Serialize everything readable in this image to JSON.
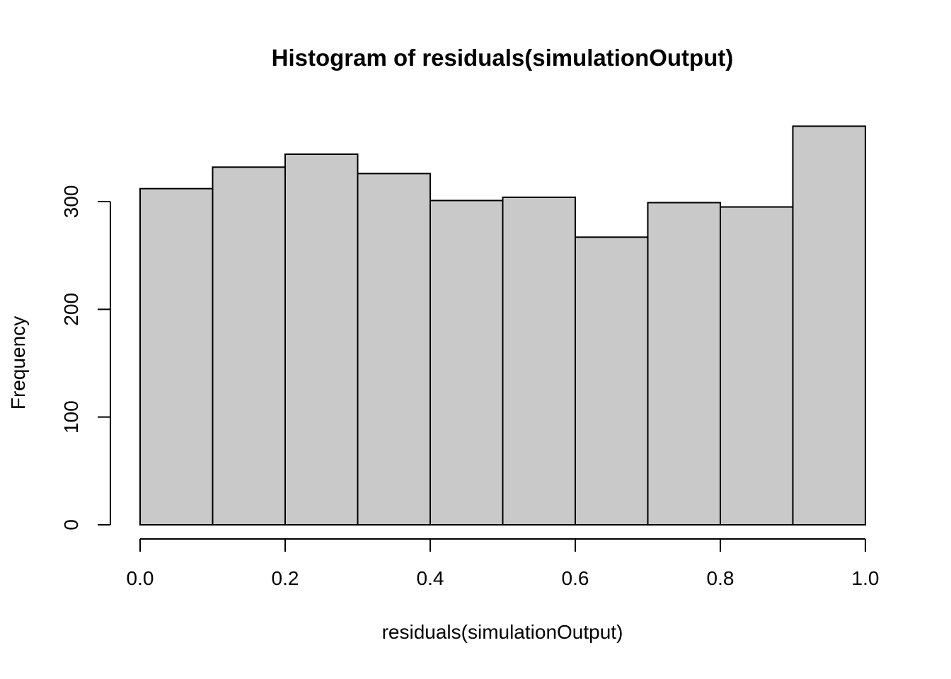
{
  "chart_data": {
    "type": "bar",
    "subtype": "histogram",
    "title": "Histogram of residuals(simulationOutput)",
    "xlabel": "residuals(simulationOutput)",
    "ylabel": "Frequency",
    "bin_edges": [
      0.0,
      0.1,
      0.2,
      0.3,
      0.4,
      0.5,
      0.6,
      0.7,
      0.8,
      0.9,
      1.0
    ],
    "counts": [
      312,
      332,
      344,
      326,
      301,
      304,
      267,
      299,
      295,
      370
    ],
    "xlim": [
      0.0,
      1.0
    ],
    "ylim": [
      0,
      300
    ],
    "x_ticks": {
      "values": [
        0.0,
        0.2,
        0.4,
        0.6,
        0.8,
        1.0
      ],
      "labels": [
        "0.0",
        "0.2",
        "0.4",
        "0.6",
        "0.8",
        "1.0"
      ]
    },
    "y_ticks": {
      "values": [
        0,
        100,
        200,
        300
      ],
      "labels": [
        "0",
        "100",
        "200",
        "300"
      ]
    },
    "grid": false,
    "legend": null,
    "colors": {
      "bar_fill": "#c9c9c9",
      "bar_stroke": "#000000",
      "axis": "#000000",
      "text": "#000000",
      "background": "#ffffff"
    }
  }
}
